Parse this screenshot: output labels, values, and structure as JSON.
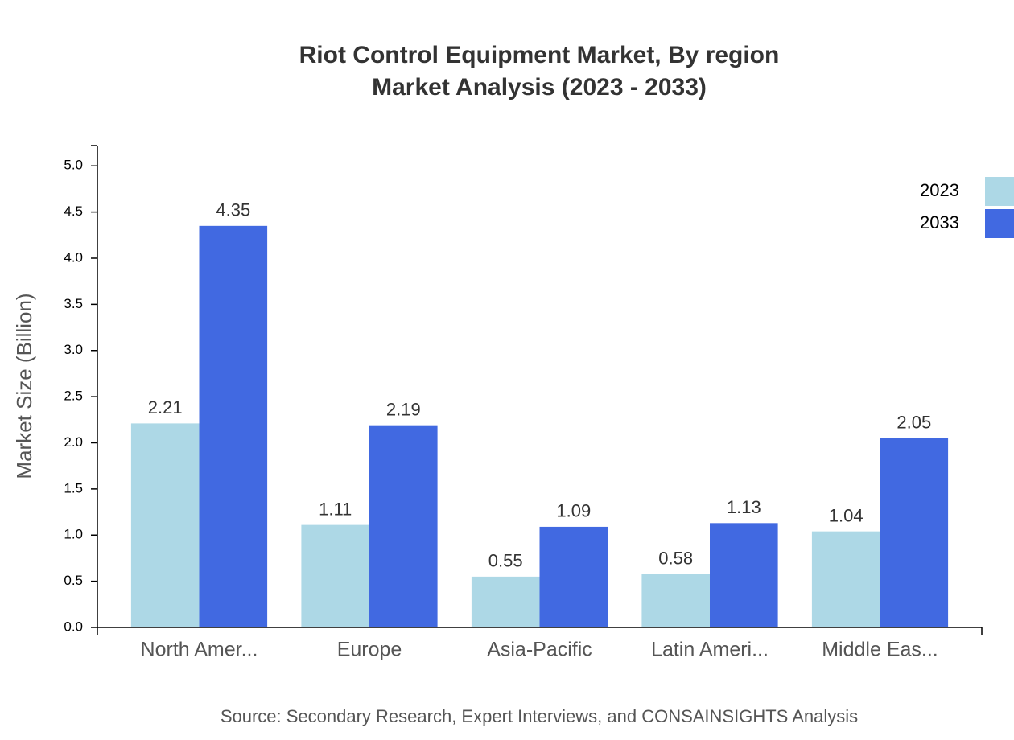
{
  "chart_data": {
    "type": "bar",
    "title": "Riot Control Equipment Market, By region",
    "subtitle": "Market Analysis (2023 - 2033)",
    "y_label": "Market Size (Billion)",
    "source": "Source: Secondary Research, Expert Interviews, and CONSAINSIGHTS Analysis",
    "categories": [
      "North Amer...",
      "Europe",
      "Asia-Pacific",
      "Latin Ameri...",
      "Middle Eas..."
    ],
    "series": [
      {
        "name": "2023",
        "color": "#add8e6",
        "values": [
          2.21,
          1.11,
          0.55,
          0.58,
          1.04
        ]
      },
      {
        "name": "2033",
        "color": "#4169e1",
        "values": [
          4.35,
          2.19,
          1.09,
          1.13,
          2.05
        ]
      }
    ],
    "ylim": [
      0,
      5.22
    ],
    "yticks": [
      {
        "value": 0,
        "label": "0.0"
      },
      0.5,
      {
        "value": 1,
        "label": "1.0"
      },
      1.5,
      {
        "value": 2,
        "label": "2.0"
      },
      2.5,
      {
        "value": 3,
        "label": "3.0"
      },
      3.5,
      {
        "value": 4,
        "label": "4.0"
      },
      4.5,
      {
        "value": 5,
        "label": "5.0"
      }
    ]
  }
}
